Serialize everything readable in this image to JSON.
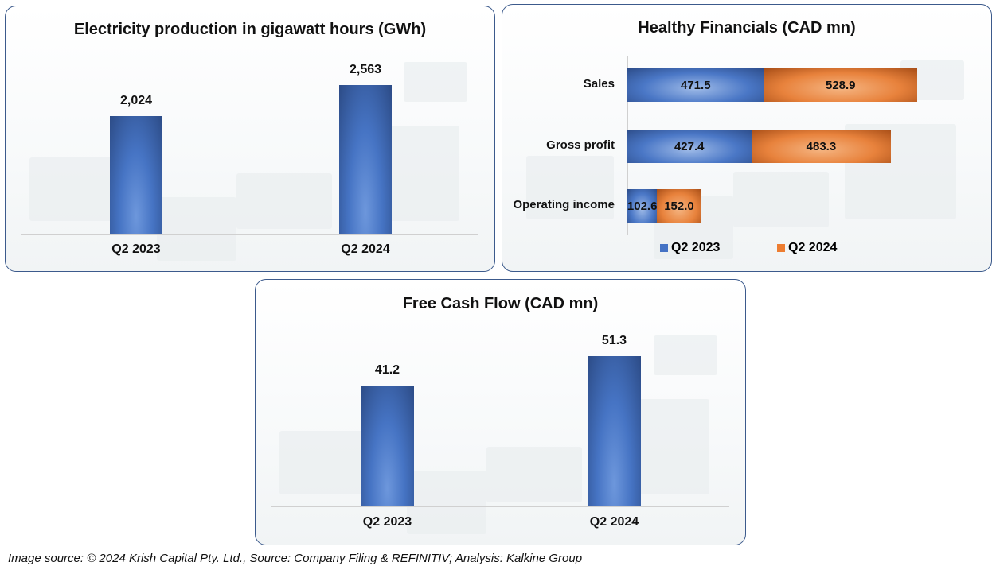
{
  "chart_data": [
    {
      "type": "bar",
      "title": "Electricity production in gigawatt hours (GWh)",
      "categories": [
        "Q2 2023",
        "Q2 2024"
      ],
      "values": [
        2024,
        2563
      ],
      "value_labels": [
        "2,024",
        "2,563"
      ],
      "xlabel": "",
      "ylabel": "",
      "ylim": [
        0,
        3000
      ],
      "color": "#3a63a8"
    },
    {
      "type": "bar",
      "orientation": "horizontal-stacked",
      "title": "Healthy Financials (CAD mn)",
      "categories": [
        "Sales",
        "Gross profit",
        "Operating income"
      ],
      "series": [
        {
          "name": "Q2 2023",
          "values": [
            471.5,
            427.4,
            102.6
          ],
          "labels": [
            "471.5",
            "427.4",
            "102.6"
          ],
          "color": "#4472c4"
        },
        {
          "name": "Q2 2024",
          "values": [
            528.9,
            483.3,
            152.0
          ],
          "labels": [
            "528.9",
            "483.3",
            "152.0"
          ],
          "color": "#ed7d31"
        }
      ],
      "xlim": [
        0,
        1000.4
      ],
      "legend": "bottom"
    },
    {
      "type": "bar",
      "title": "Free Cash Flow (CAD mn)",
      "categories": [
        "Q2 2023",
        "Q2 2024"
      ],
      "values": [
        41.2,
        51.3
      ],
      "value_labels": [
        "41.2",
        "51.3"
      ],
      "xlabel": "",
      "ylabel": "",
      "ylim": [
        0,
        60
      ],
      "color": "#3a63a8"
    }
  ],
  "caption": "Image source: © 2024 Krish Capital Pty. Ltd., Source: Company Filing & REFINITIV; Analysis: Kalkine Group"
}
